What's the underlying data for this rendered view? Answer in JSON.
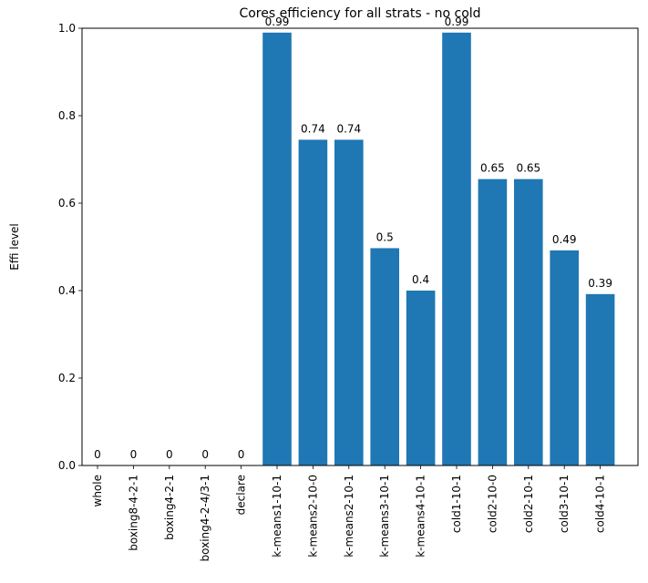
{
  "chart_data": {
    "type": "bar",
    "title": "Cores efficiency for all strats - no cold",
    "xlabel": "",
    "ylabel": "Effi level",
    "ylim": [
      0,
      1.0
    ],
    "yticks": [
      "0.0",
      "0.2",
      "0.4",
      "0.6",
      "0.8",
      "1.0"
    ],
    "grid": false,
    "bar_color": "#1f77b4",
    "categories": [
      "whole",
      "boxing8-4-2-1",
      "boxing4-2-1",
      "boxing4-2-4/3-1",
      "declare",
      "k-means1-10-1",
      "k-means2-10-0",
      "k-means2-10-1",
      "k-means3-10-1",
      "k-means4-10-1",
      "cold1-10-1",
      "cold2-10-0",
      "cold2-10-1",
      "cold3-10-1",
      "cold4-10-1"
    ],
    "values": [
      0,
      0,
      0,
      0,
      0,
      0.99,
      0.745,
      0.745,
      0.497,
      0.4,
      0.99,
      0.655,
      0.655,
      0.492,
      0.392
    ],
    "labels": [
      "0",
      "0",
      "0",
      "0",
      "0",
      "0.99",
      "0.74",
      "0.74",
      "0.5",
      "0.4",
      "0.99",
      "0.65",
      "0.65",
      "0.49",
      "0.39"
    ]
  }
}
